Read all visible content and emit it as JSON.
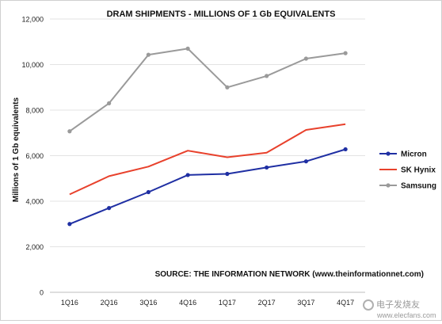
{
  "chart_data": {
    "type": "line",
    "title": "DRAM SHIPMENTS - MILLIONS OF 1 Gb EQUIVALENTS",
    "ylabel": "Millions of 1 Gb equivalents",
    "xlabel": "",
    "source_note": "SOURCE: THE INFORMATION NETWORK (www.theinformationnet.com)",
    "categories": [
      "1Q16",
      "2Q16",
      "3Q16",
      "4Q16",
      "1Q17",
      "2Q17",
      "3Q17",
      "4Q17"
    ],
    "ylim": [
      0,
      12000
    ],
    "yticks": [
      0,
      2000,
      4000,
      6000,
      8000,
      10000,
      12000
    ],
    "ytick_labels": [
      "0",
      "2,000",
      "4,000",
      "6,000",
      "8,000",
      "10,000",
      "12,000"
    ],
    "grid": true,
    "legend_position": "right",
    "series": [
      {
        "name": "Micron",
        "color": "#1f2fa3",
        "marker": "circle",
        "values": [
          3000,
          3700,
          4400,
          5150,
          5200,
          5480,
          5750,
          6280
        ]
      },
      {
        "name": "SK Hynix",
        "color": "#e8412c",
        "marker": "none",
        "values": [
          4300,
          5100,
          5520,
          6220,
          5930,
          6130,
          7130,
          7380
        ]
      },
      {
        "name": "Samsung",
        "color": "#9a9a9a",
        "marker": "circle",
        "values": [
          7070,
          8300,
          10430,
          10700,
          9000,
          9500,
          10260,
          10500
        ]
      }
    ]
  },
  "watermark": {
    "text": "电子发烧友",
    "url": "www.elecfans.com"
  }
}
